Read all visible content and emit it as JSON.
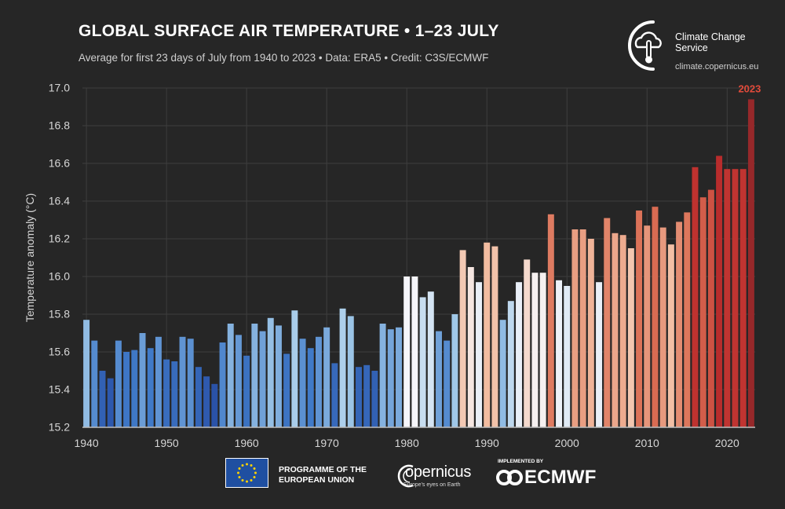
{
  "header": {
    "title": "GLOBAL SURFACE AIR TEMPERATURE • 1–23 JULY",
    "subtitle": "Average for first 23 days of July from 1940 to 2023 • Data: ERA5 • Credit: C3S/ECMWF"
  },
  "branding": {
    "c3s_name": "Climate Change Service",
    "c3s_url": "climate.copernicus.eu",
    "eu_programme": "PROGRAMME OF THE EUROPEAN UNION",
    "copernicus": "opernicus",
    "copernicus_tagline": "Europe's eyes on Earth",
    "implemented_by": "IMPLEMENTED BY",
    "ecmwf": "ECMWF"
  },
  "colors": {
    "background": "#262626",
    "highlight_label": "#e04a3a",
    "cold": "#2a52a8",
    "neutral": "#f5f5f5",
    "warm": "#a0292c"
  },
  "chart_data": {
    "type": "bar",
    "title": "GLOBAL SURFACE AIR TEMPERATURE • 1–23 JULY",
    "xlabel": "",
    "ylabel": "Temperature anomaly (°C)",
    "ylim": [
      15.2,
      17.0
    ],
    "yticks": [
      "15.2",
      "15.4",
      "15.6",
      "15.8",
      "16.0",
      "16.2",
      "16.4",
      "16.6",
      "16.8",
      "17.0"
    ],
    "xticks": [
      "1940",
      "1950",
      "1960",
      "1970",
      "1980",
      "1990",
      "2000",
      "2010",
      "2020"
    ],
    "grid": true,
    "annotation": "2023",
    "x": [
      1940,
      1941,
      1942,
      1943,
      1944,
      1945,
      1946,
      1947,
      1948,
      1949,
      1950,
      1951,
      1952,
      1953,
      1954,
      1955,
      1956,
      1957,
      1958,
      1959,
      1960,
      1961,
      1962,
      1963,
      1964,
      1965,
      1966,
      1967,
      1968,
      1969,
      1970,
      1971,
      1972,
      1973,
      1974,
      1975,
      1976,
      1977,
      1978,
      1979,
      1980,
      1981,
      1982,
      1983,
      1984,
      1985,
      1986,
      1987,
      1988,
      1989,
      1990,
      1991,
      1992,
      1993,
      1994,
      1995,
      1996,
      1997,
      1998,
      1999,
      2000,
      2001,
      2002,
      2003,
      2004,
      2005,
      2006,
      2007,
      2008,
      2009,
      2010,
      2011,
      2012,
      2013,
      2014,
      2015,
      2016,
      2017,
      2018,
      2019,
      2020,
      2021,
      2022,
      2023
    ],
    "values": [
      15.77,
      15.66,
      15.5,
      15.46,
      15.66,
      15.6,
      15.61,
      15.7,
      15.62,
      15.68,
      15.56,
      15.55,
      15.68,
      15.67,
      15.52,
      15.47,
      15.43,
      15.65,
      15.75,
      15.69,
      15.58,
      15.75,
      15.71,
      15.78,
      15.74,
      15.59,
      15.82,
      15.67,
      15.62,
      15.68,
      15.73,
      15.54,
      15.83,
      15.79,
      15.52,
      15.53,
      15.5,
      15.75,
      15.72,
      15.73,
      16.0,
      16.0,
      15.89,
      15.92,
      15.71,
      15.66,
      15.8,
      16.14,
      16.05,
      15.97,
      16.18,
      16.16,
      15.77,
      15.87,
      15.97,
      16.09,
      16.02,
      16.02,
      16.33,
      15.98,
      15.95,
      16.25,
      16.25,
      16.2,
      15.97,
      16.31,
      16.23,
      16.22,
      16.15,
      16.35,
      16.27,
      16.37,
      16.26,
      16.17,
      16.29,
      16.34,
      16.58,
      16.42,
      16.46,
      16.64,
      16.57,
      16.57,
      16.57,
      16.94
    ]
  }
}
